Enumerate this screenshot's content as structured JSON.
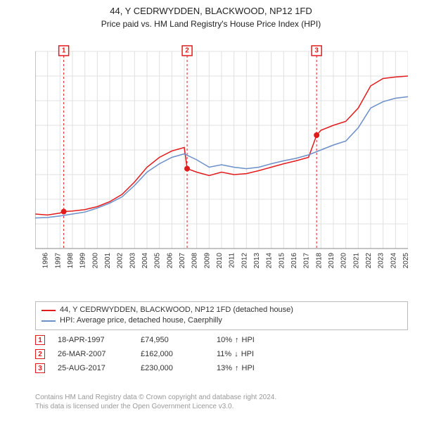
{
  "title_line1": "44, Y CEDRWYDDEN, BLACKWOOD, NP12 1FD",
  "title_line2": "Price paid vs. HM Land Registry's House Price Index (HPI)",
  "chart": {
    "type": "line",
    "background_color": "#ffffff",
    "grid_color": "#e0e0e0",
    "axis_color": "#888888",
    "ylim": [
      0,
      400000
    ],
    "ytick_step": 50000,
    "ytick_labels": [
      "£0",
      "£50K",
      "£100K",
      "£150K",
      "£200K",
      "£250K",
      "£300K",
      "£350K",
      "£400K"
    ],
    "xlim": [
      1995,
      2025
    ],
    "xtick_step": 1,
    "xtick_labels": [
      "1995",
      "1996",
      "1997",
      "1998",
      "1999",
      "2000",
      "2001",
      "2002",
      "2003",
      "2004",
      "2005",
      "2006",
      "2007",
      "2008",
      "2009",
      "2010",
      "2011",
      "2012",
      "2013",
      "2014",
      "2015",
      "2016",
      "2017",
      "2018",
      "2019",
      "2020",
      "2021",
      "2022",
      "2023",
      "2024",
      "2025"
    ],
    "series": [
      {
        "name": "property",
        "color": "#e31a1c",
        "line_width": 1.5,
        "data": [
          [
            1995,
            70000
          ],
          [
            1996,
            68000
          ],
          [
            1997,
            72000
          ],
          [
            1997.3,
            74950
          ],
          [
            1998,
            76000
          ],
          [
            1999,
            79000
          ],
          [
            2000,
            85000
          ],
          [
            2001,
            95000
          ],
          [
            2002,
            110000
          ],
          [
            2003,
            135000
          ],
          [
            2004,
            165000
          ],
          [
            2005,
            185000
          ],
          [
            2006,
            198000
          ],
          [
            2007,
            205000
          ],
          [
            2007.23,
            162000
          ],
          [
            2008,
            155000
          ],
          [
            2009,
            148000
          ],
          [
            2010,
            155000
          ],
          [
            2011,
            150000
          ],
          [
            2012,
            152000
          ],
          [
            2013,
            158000
          ],
          [
            2014,
            165000
          ],
          [
            2015,
            172000
          ],
          [
            2016,
            178000
          ],
          [
            2017,
            185000
          ],
          [
            2017.65,
            230000
          ],
          [
            2018,
            240000
          ],
          [
            2019,
            250000
          ],
          [
            2020,
            258000
          ],
          [
            2021,
            285000
          ],
          [
            2022,
            330000
          ],
          [
            2023,
            345000
          ],
          [
            2024,
            348000
          ],
          [
            2025,
            350000
          ]
        ]
      },
      {
        "name": "hpi",
        "color": "#6b8fc9",
        "line_width": 1.5,
        "data": [
          [
            1995,
            62000
          ],
          [
            1996,
            63000
          ],
          [
            1997,
            66000
          ],
          [
            1998,
            70000
          ],
          [
            1999,
            74000
          ],
          [
            2000,
            82000
          ],
          [
            2001,
            92000
          ],
          [
            2002,
            105000
          ],
          [
            2003,
            128000
          ],
          [
            2004,
            155000
          ],
          [
            2005,
            172000
          ],
          [
            2006,
            185000
          ],
          [
            2007,
            192000
          ],
          [
            2008,
            180000
          ],
          [
            2009,
            165000
          ],
          [
            2010,
            170000
          ],
          [
            2011,
            165000
          ],
          [
            2012,
            162000
          ],
          [
            2013,
            165000
          ],
          [
            2014,
            172000
          ],
          [
            2015,
            178000
          ],
          [
            2016,
            183000
          ],
          [
            2017,
            190000
          ],
          [
            2018,
            200000
          ],
          [
            2019,
            210000
          ],
          [
            2020,
            218000
          ],
          [
            2021,
            245000
          ],
          [
            2022,
            285000
          ],
          [
            2023,
            298000
          ],
          [
            2024,
            305000
          ],
          [
            2025,
            308000
          ]
        ]
      }
    ],
    "markers": [
      {
        "index": 1,
        "x": 1997.3,
        "y": 74950,
        "color": "#e31a1c"
      },
      {
        "index": 2,
        "x": 2007.23,
        "y": 162000,
        "color": "#e31a1c"
      },
      {
        "index": 3,
        "x": 2017.65,
        "y": 230000,
        "color": "#e31a1c"
      }
    ],
    "marker_box": {
      "size": 14,
      "y_top": -8
    },
    "dot_radius": 4
  },
  "legend": {
    "items": [
      {
        "color": "#e31a1c",
        "label": "44, Y CEDRWYDDEN, BLACKWOOD, NP12 1FD (detached house)"
      },
      {
        "color": "#6b8fc9",
        "label": "HPI: Average price, detached house, Caerphilly"
      }
    ]
  },
  "sales": [
    {
      "num": "1",
      "color": "#e31a1c",
      "date": "18-APR-1997",
      "price": "£74,950",
      "diff": "10%",
      "arrow": "↑",
      "diff_label": "HPI"
    },
    {
      "num": "2",
      "color": "#e31a1c",
      "date": "26-MAR-2007",
      "price": "£162,000",
      "diff": "11%",
      "arrow": "↓",
      "diff_label": "HPI"
    },
    {
      "num": "3",
      "color": "#e31a1c",
      "date": "25-AUG-2017",
      "price": "£230,000",
      "diff": "13%",
      "arrow": "↑",
      "diff_label": "HPI"
    }
  ],
  "footer_line1": "Contains HM Land Registry data © Crown copyright and database right 2024.",
  "footer_line2": "This data is licensed under the Open Government Licence v3.0."
}
